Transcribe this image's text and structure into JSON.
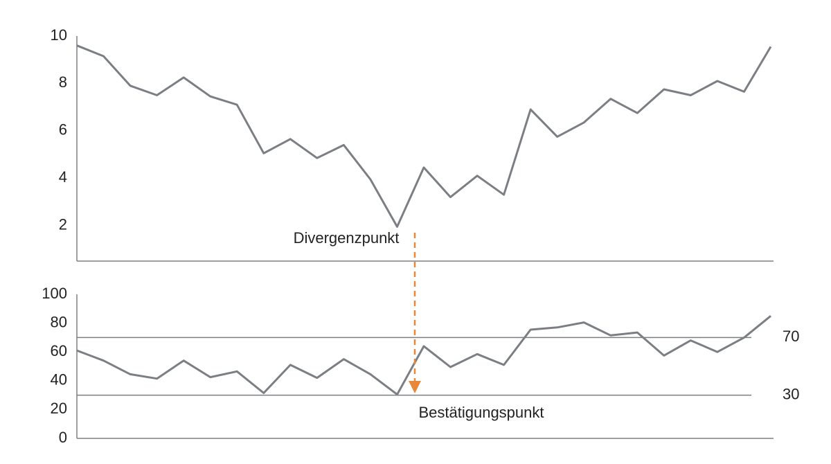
{
  "chart_data": [
    {
      "type": "line",
      "categories": [
        null,
        null,
        null,
        null,
        null,
        null,
        null,
        null,
        null,
        null,
        null,
        null,
        null,
        null,
        null,
        null,
        null,
        null,
        null,
        null,
        null,
        null,
        null,
        null,
        null,
        null,
        null
      ],
      "values": [
        9.6,
        9.15,
        7.9,
        7.5,
        8.25,
        7.45,
        7.1,
        5.05,
        5.65,
        4.85,
        5.4,
        3.95,
        1.95,
        4.45,
        3.2,
        4.1,
        3.3,
        6.9,
        5.75,
        6.35,
        7.35,
        6.75,
        7.75,
        7.5,
        8.1,
        7.65,
        9.55
      ],
      "color": "#7b7e83",
      "ylim": [
        0.5,
        10
      ],
      "yticks": [
        2,
        4,
        6,
        8,
        10
      ],
      "annotation": "Divergenzpunkt"
    },
    {
      "type": "line",
      "categories": [
        null,
        null,
        null,
        null,
        null,
        null,
        null,
        null,
        null,
        null,
        null,
        null,
        null,
        null,
        null,
        null,
        null,
        null,
        null,
        null,
        null,
        null,
        null,
        null,
        null,
        null,
        null
      ],
      "values": [
        61,
        54,
        44.5,
        41.5,
        54,
        42.5,
        46.5,
        31.5,
        51,
        42,
        55,
        44.5,
        30.5,
        64,
        49.5,
        58.5,
        51,
        75.5,
        77,
        80.5,
        71.5,
        73.5,
        57.5,
        68,
        60,
        70,
        85
      ],
      "color": "#7b7e83",
      "ylim": [
        0,
        100
      ],
      "yticks": [
        0,
        20,
        40,
        60,
        80,
        100
      ],
      "reference_lines": [
        70,
        30
      ],
      "annotation": "Bestätigungspunkt"
    }
  ]
}
